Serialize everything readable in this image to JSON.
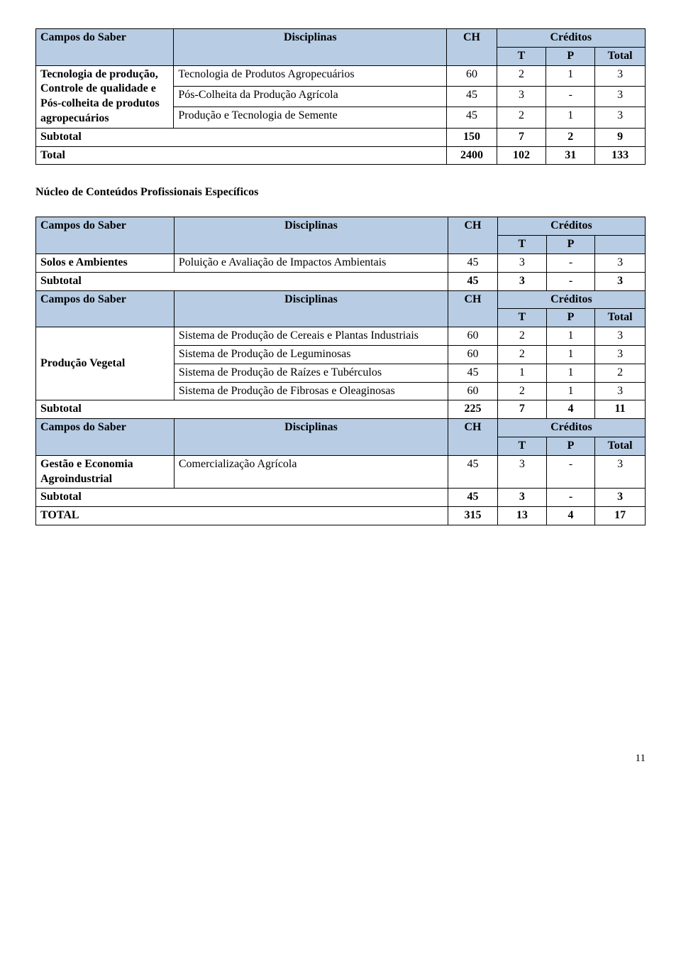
{
  "t1": {
    "headers": {
      "campos": "Campos do Saber",
      "disc": "Disciplinas",
      "ch": "CH",
      "cred": "Créditos",
      "t": "T",
      "p": "P",
      "total": "Total"
    },
    "group_label": "Tecnologia de produção, Controle de qualidade e Pós-colheita de produtos agropecuários",
    "rows": [
      {
        "disc": "Tecnologia de Produtos Agropecuários",
        "ch": "60",
        "t": "2",
        "p": "1",
        "total": "3"
      },
      {
        "disc": "Pós-Colheita da Produção Agrícola",
        "ch": "45",
        "t": "3",
        "p": "-",
        "total": "3"
      },
      {
        "disc": "Produção e Tecnologia de Semente",
        "ch": "45",
        "t": "2",
        "p": "1",
        "total": "3"
      }
    ],
    "subtotal": {
      "label": "Subtotal",
      "ch": "150",
      "t": "7",
      "p": "2",
      "total": "9"
    },
    "grand": {
      "label": "Total",
      "ch": "2400",
      "t": "102",
      "p": "31",
      "total": "133"
    }
  },
  "section_title": "Núcleo de Conteúdos Profissionais Específicos",
  "t2": {
    "headers": {
      "campos": "Campos do Saber",
      "disc": "Disciplinas",
      "ch": "CH",
      "cred": "Créditos",
      "t": "T",
      "p": "P",
      "total": "Total"
    },
    "b1": {
      "group_label": "Solos e Ambientes",
      "row": {
        "disc": "Poluição e Avaliação de Impactos Ambientais",
        "ch": "45",
        "t": "3",
        "p": "-",
        "total": "3"
      },
      "subtotal": {
        "label": "Subtotal",
        "ch": "45",
        "t": "3",
        "p": "-",
        "total": "3"
      }
    },
    "b2": {
      "group_label": "Produção Vegetal",
      "rows": [
        {
          "disc": "Sistema de Produção de Cereais e Plantas Industriais",
          "ch": "60",
          "t": "2",
          "p": "1",
          "total": "3"
        },
        {
          "disc": "Sistema de Produção de Leguminosas",
          "ch": "60",
          "t": "2",
          "p": "1",
          "total": "3"
        },
        {
          "disc": "Sistema de Produção de Raízes e Tubérculos",
          "ch": "45",
          "t": "1",
          "p": "1",
          "total": "2"
        },
        {
          "disc": "Sistema de Produção de Fibrosas e Oleaginosas",
          "ch": "60",
          "t": "2",
          "p": "1",
          "total": "3"
        }
      ],
      "subtotal": {
        "label": "Subtotal",
        "ch": "225",
        "t": "7",
        "p": "4",
        "total": "11"
      }
    },
    "b3": {
      "group_label": "Gestão e Economia Agroindustrial",
      "row": {
        "disc": "Comercialização Agrícola",
        "ch": "45",
        "t": "3",
        "p": "-",
        "total": "3"
      },
      "subtotal": {
        "label": "Subtotal",
        "ch": "45",
        "t": "3",
        "p": "-",
        "total": "3"
      },
      "grand": {
        "label": "TOTAL",
        "ch": "315",
        "t": "13",
        "p": "4",
        "total": "17"
      }
    }
  },
  "page_number": "11"
}
